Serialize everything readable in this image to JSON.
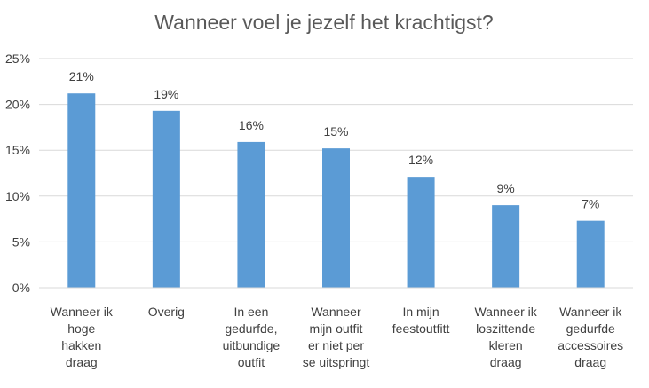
{
  "chart_data": {
    "type": "bar",
    "title": "Wanneer voel je jezelf het krachtigst?",
    "xlabel": "",
    "ylabel": "",
    "ylim": [
      0,
      0.25
    ],
    "yticks": [
      0,
      0.05,
      0.1,
      0.15,
      0.2,
      0.25
    ],
    "ytick_labels": [
      "0%",
      "5%",
      "10%",
      "15%",
      "20%",
      "25%"
    ],
    "grid": true,
    "legend": "none",
    "bar_color": "#5b9bd5",
    "categories": [
      [
        "Wanneer ik",
        "hoge",
        "hakken",
        "draag"
      ],
      [
        "Overig"
      ],
      [
        "In een",
        "gedurfde,",
        "uitbundige",
        "outfit"
      ],
      [
        "Wanneer",
        "mijn outfit",
        "er niet per",
        "se uitspringt"
      ],
      [
        "In mijn",
        "feestoutfitt"
      ],
      [
        "Wanneer ik",
        "loszittende",
        "kleren",
        "draag"
      ],
      [
        "Wanneer ik",
        "gedurfde",
        "accessoires",
        "draag"
      ]
    ],
    "values": [
      0.212,
      0.193,
      0.159,
      0.152,
      0.121,
      0.09,
      0.073
    ],
    "data_labels": [
      "21%",
      "19%",
      "16%",
      "15%",
      "12%",
      "9%",
      "7%"
    ]
  }
}
